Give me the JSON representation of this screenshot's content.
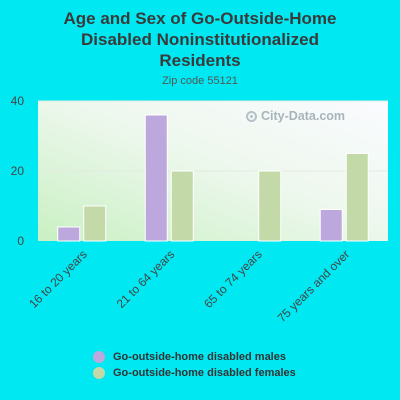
{
  "header": {
    "title": "Age and Sex of Go-Outside-Home\nDisabled Noninstitutionalized\nResidents",
    "subtitle": "Zip code 55121"
  },
  "watermark": {
    "text": "City-Data.com",
    "icon": "city-data-logo-icon"
  },
  "colors": {
    "page_background": "#00e8f2",
    "males": "#bca8dc",
    "females": "#c4d9a8"
  },
  "chart_data": {
    "type": "bar",
    "categories": [
      "16 to 20 years",
      "21 to 64 years",
      "65 to 74 years",
      "75 years and over"
    ],
    "series": [
      {
        "name": "Go-outside-home disabled males",
        "values": [
          4,
          36,
          0,
          9
        ],
        "color": "#bca8dc"
      },
      {
        "name": "Go-outside-home disabled females",
        "values": [
          10,
          20,
          20,
          25
        ],
        "color": "#c4d9a8"
      }
    ],
    "ylim": [
      0,
      40
    ],
    "yticks": [
      0,
      20,
      40
    ],
    "grid": true,
    "legend_position": "bottom"
  }
}
